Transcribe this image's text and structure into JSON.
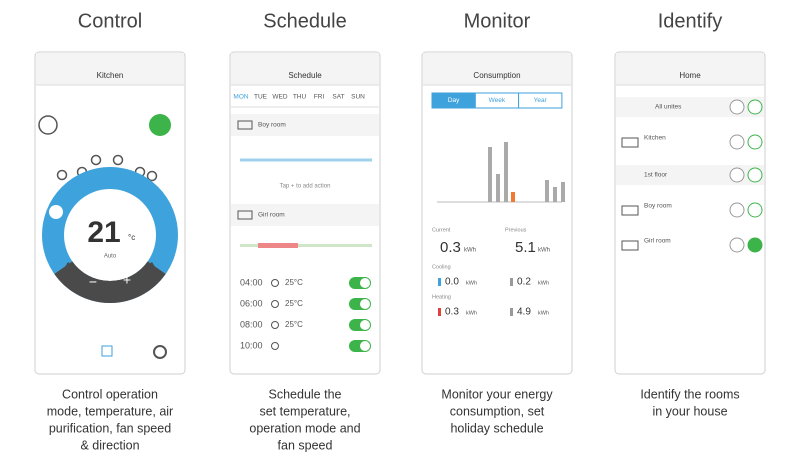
{
  "headings": [
    "Control",
    "Schedule",
    "Monitor",
    "Identify"
  ],
  "captions": [
    [
      "Control operation",
      "mode, temperature, air",
      "purification, fan speed",
      "& direction"
    ],
    [
      "Schedule the",
      "set temperature,",
      "operation mode and",
      "fan speed"
    ],
    [
      "Monitor your energy",
      "consumption, set",
      "holiday schedule"
    ],
    [
      "Identify the rooms",
      "in your house"
    ]
  ],
  "control": {
    "room": "Kitchen",
    "temperature": "21",
    "unit": "°c",
    "mode": "Auto",
    "minus": "−",
    "plus": "+"
  },
  "schedule": {
    "title": "Schedule",
    "days": [
      "MON",
      "TUE",
      "WED",
      "THU",
      "FRI",
      "SAT",
      "SUN"
    ],
    "rooms": [
      "Boy room",
      "Girl room"
    ],
    "hint": "Tap + to add action",
    "entries": [
      {
        "time": "04:00",
        "temp": "25°C"
      },
      {
        "time": "06:00",
        "temp": "25°C"
      },
      {
        "time": "08:00",
        "temp": "25°C"
      },
      {
        "time": "10:00"
      }
    ]
  },
  "monitor": {
    "title": "Consumption",
    "tabs": [
      "Day",
      "Week",
      "Year"
    ],
    "current_label": "Current",
    "previous_label": "Previous",
    "current": "0.3",
    "previous": "5.1",
    "unit": "kWh",
    "cooling_label": "Cooling",
    "heating_label": "Heating",
    "cooling": [
      "0.0",
      "0.2"
    ],
    "heating": [
      "0.3",
      "4.9"
    ]
  },
  "identify": {
    "title": "Home",
    "items": [
      "All unites",
      "Kitchen",
      "1st floor",
      "Boy room",
      "Girl room"
    ]
  }
}
